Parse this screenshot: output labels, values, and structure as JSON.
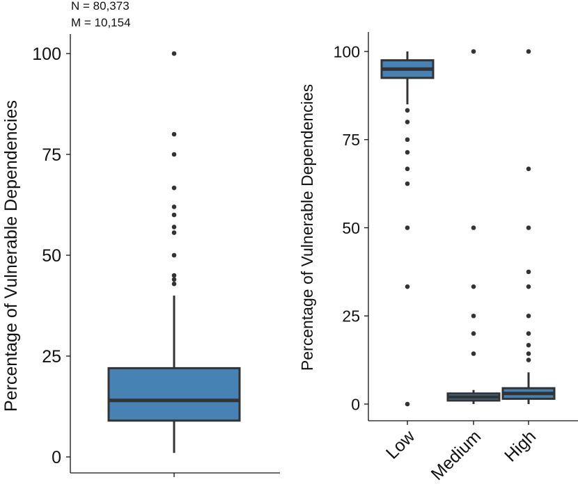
{
  "colors": {
    "box_fill": "#4682b4",
    "box_stroke": "#333333",
    "point": "#333333",
    "axis": "#111111"
  },
  "chart_data": [
    {
      "type": "boxplot",
      "title": "",
      "annotations": [
        "N = 80,373",
        "M = 10,154"
      ],
      "xlabel": "",
      "ylabel": "Percentage of Vulnerable Dependencies",
      "ylim": [
        0,
        100
      ],
      "yticks": [
        0,
        25,
        50,
        75,
        100
      ],
      "categories": [
        ""
      ],
      "boxes": [
        {
          "category": "",
          "q1": 9,
          "median": 14,
          "q3": 22,
          "whisker_low": 1,
          "whisker_high": 40,
          "outliers": [
            42.9,
            44,
            45,
            50,
            55.6,
            57,
            60,
            62,
            66.7,
            75,
            80,
            100
          ]
        }
      ]
    },
    {
      "type": "boxplot",
      "title": "",
      "xlabel": "",
      "ylabel": "Percentage of Vulnerable Dependencies",
      "ylim": [
        0,
        100
      ],
      "yticks": [
        0,
        25,
        50,
        75,
        100
      ],
      "categories": [
        "Low",
        "Medium",
        "High"
      ],
      "boxes": [
        {
          "category": "Low",
          "q1": 92.5,
          "median": 95,
          "q3": 97.5,
          "whisker_low": 85,
          "whisker_high": 100,
          "outliers": [
            0,
            33.3,
            50,
            62.5,
            66.7,
            71.4,
            75,
            80,
            83.3
          ]
        },
        {
          "category": "Medium",
          "q1": 1,
          "median": 2,
          "q3": 3,
          "whisker_low": 0,
          "whisker_high": 4,
          "outliers": [
            14.3,
            20,
            25,
            33.3,
            50,
            100
          ]
        },
        {
          "category": "High",
          "q1": 1.5,
          "median": 3,
          "q3": 4.5,
          "whisker_low": 0,
          "whisker_high": 9,
          "outliers": [
            12.5,
            14.3,
            16.7,
            20,
            25,
            33.3,
            37.5,
            50,
            66.7,
            100
          ]
        }
      ]
    }
  ]
}
